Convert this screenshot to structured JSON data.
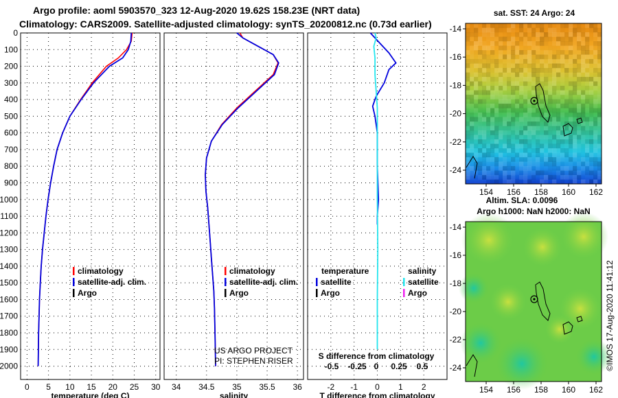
{
  "titles": {
    "line1": "Argo profile: aoml 5903570_323 12-Aug-2020 19.62S 158.23E (NRT data)",
    "line2": "Climatology: CARS2009. Satellite-adjusted climatology: synTS_20200812.nc (0.73d earlier)"
  },
  "colors": {
    "climatology": "#ff0000",
    "satellite": "#0000dd",
    "argo": "#000000",
    "s_satellite": "#22e5ee",
    "s_argo": "#ee22ee"
  },
  "credits": {
    "line1": "US ARGO PROJECT",
    "line2": "PI: STEPHEN RISER"
  },
  "stamp": "©IMOS 17-Aug-2020 11:41:12",
  "chart_data": [
    {
      "type": "line",
      "name": "temperature-profile",
      "xlabel": "temperature (deg C)",
      "ylabel": "",
      "xlim": [
        -1.5,
        31
      ],
      "ylim": [
        2080,
        0
      ],
      "xticks": [
        0,
        5,
        10,
        15,
        20,
        25,
        30
      ],
      "yticks": [
        0,
        100,
        200,
        300,
        400,
        500,
        600,
        700,
        800,
        900,
        1000,
        1100,
        1200,
        1300,
        1400,
        1500,
        1600,
        1700,
        1800,
        1900,
        2000
      ],
      "grid": true,
      "legend": [
        "climatology",
        "satellite-adj. clim.",
        "Argo"
      ],
      "series": [
        {
          "name": "climatology",
          "x": [
            24.5,
            24.3,
            23.2,
            21.3,
            18.5,
            15.2,
            12.5,
            10.0,
            8.3,
            7.0,
            6.2,
            5.5,
            4.9,
            4.4,
            4.0,
            3.6,
            3.3,
            3.1,
            2.9,
            2.8,
            2.7,
            2.6
          ],
          "y": [
            0,
            50,
            100,
            150,
            200,
            300,
            400,
            500,
            600,
            700,
            800,
            900,
            1000,
            1100,
            1200,
            1300,
            1400,
            1500,
            1600,
            1700,
            1800,
            2000
          ]
        },
        {
          "name": "satellite-adj. clim.",
          "x": [
            24.3,
            24.2,
            23.6,
            22.3,
            19.2,
            15.5,
            12.6,
            10.0,
            8.3,
            7.0,
            6.2,
            5.5,
            4.9,
            4.4,
            4.0,
            3.6,
            3.3,
            3.1,
            2.9,
            2.8,
            2.7,
            2.6
          ],
          "y": [
            0,
            50,
            100,
            150,
            200,
            300,
            400,
            500,
            600,
            700,
            800,
            900,
            1000,
            1100,
            1200,
            1300,
            1400,
            1500,
            1600,
            1700,
            1800,
            2000
          ]
        }
      ]
    },
    {
      "type": "line",
      "name": "salinity-profile",
      "xlabel": "salinity",
      "xlim": [
        33.8,
        36.1
      ],
      "ylim": [
        2080,
        0
      ],
      "xticks": [
        34,
        34.5,
        35,
        35.5,
        36
      ],
      "grid": true,
      "legend": [
        "climatology",
        "satellite-adj. clim.",
        "Argo"
      ],
      "series": [
        {
          "name": "climatology",
          "x": [
            35.05,
            35.1,
            35.35,
            35.6,
            35.68,
            35.6,
            35.3,
            35.0,
            34.75,
            34.58,
            34.5,
            34.48,
            34.49,
            34.52,
            34.54,
            34.56,
            34.58,
            34.6,
            34.62,
            34.63,
            34.64,
            34.65
          ],
          "y": [
            0,
            30,
            80,
            130,
            180,
            250,
            350,
            450,
            550,
            650,
            750,
            850,
            950,
            1050,
            1150,
            1250,
            1350,
            1450,
            1550,
            1650,
            1800,
            2000
          ]
        },
        {
          "name": "satellite-adj. clim.",
          "x": [
            35.0,
            35.1,
            35.35,
            35.6,
            35.69,
            35.62,
            35.32,
            35.02,
            34.76,
            34.58,
            34.5,
            34.48,
            34.49,
            34.52,
            34.54,
            34.56,
            34.58,
            34.6,
            34.62,
            34.63,
            34.64,
            34.65
          ],
          "y": [
            0,
            30,
            80,
            130,
            180,
            250,
            350,
            450,
            550,
            650,
            750,
            850,
            950,
            1050,
            1150,
            1250,
            1350,
            1450,
            1550,
            1650,
            1800,
            2000
          ]
        }
      ]
    },
    {
      "type": "line",
      "name": "difference-profile",
      "xlabel": "T difference from climatology",
      "xlabel2": "S difference from climatology",
      "xlim": [
        -3,
        3
      ],
      "ylim": [
        2080,
        0
      ],
      "xticks": [
        -2,
        -1,
        0,
        1,
        2
      ],
      "xticks_s": [
        "-0.5",
        "-0.25",
        "0",
        "0.25",
        "0.5"
      ],
      "grid": true,
      "legend_titles": [
        "temperature",
        "salinity"
      ],
      "legend": [
        "satellite",
        "Argo",
        "satellite",
        "Argo"
      ],
      "series": [
        {
          "name": "temperature-satellite",
          "x": [
            -0.3,
            0.1,
            0.5,
            0.8,
            0.5,
            0.3,
            -0.05,
            -0.2,
            -0.1,
            0.0,
            0.0,
            0.05,
            0.0,
            0.0
          ],
          "y": [
            0,
            60,
            120,
            180,
            220,
            300,
            380,
            440,
            500,
            600,
            800,
            1000,
            1100,
            1150
          ]
        },
        {
          "name": "salinity-satellite",
          "x": [
            -0.1,
            -0.05,
            -0.15,
            -0.1,
            -0.1,
            -0.05,
            0.0,
            0.0,
            0.0,
            0.0,
            0.02,
            0.0,
            0.0
          ],
          "y": [
            0,
            30,
            80,
            150,
            250,
            350,
            450,
            600,
            800,
            1000,
            1300,
            1600,
            1900
          ]
        }
      ]
    },
    {
      "type": "heatmap",
      "name": "sst-map",
      "title": "sat. SST: 24 Argo: 24",
      "xticks": [
        "154",
        "156",
        "158",
        "160",
        "162"
      ],
      "yticks": [
        "-14",
        "-16",
        "-18",
        "-20",
        "-22",
        "-24"
      ]
    },
    {
      "type": "heatmap",
      "name": "sla-map",
      "title": "Altim. SLA: 0.0096",
      "subtitle": "Argo h1000: NaN h2000: NaN",
      "xticks": [
        "154",
        "156",
        "158",
        "160",
        "162"
      ],
      "yticks": [
        "-14",
        "-16",
        "-18",
        "-20",
        "-22",
        "-24"
      ]
    }
  ]
}
